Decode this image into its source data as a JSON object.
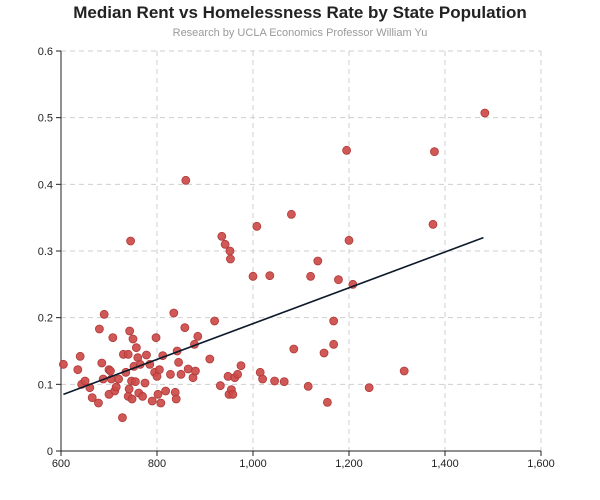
{
  "chart_data": {
    "type": "scatter",
    "title": "Median Rent vs Homelessness Rate by State Population",
    "subtitle": "Research by UCLA Economics Professor William Yu",
    "xlabel": "",
    "ylabel": "",
    "xlim": [
      600,
      1600
    ],
    "ylim": [
      0,
      0.6
    ],
    "x_ticks": [
      "600",
      "800",
      "1,000",
      "1,200",
      "1,400",
      "1,600"
    ],
    "y_ticks": [
      "0",
      "0.1",
      "0.2",
      "0.3",
      "0.4",
      "0.5",
      "0.6"
    ],
    "grid": true,
    "points": [
      [
        605,
        0.13
      ],
      [
        635,
        0.122
      ],
      [
        640,
        0.142
      ],
      [
        643,
        0.1
      ],
      [
        650,
        0.105
      ],
      [
        660,
        0.095
      ],
      [
        665,
        0.08
      ],
      [
        678,
        0.072
      ],
      [
        680,
        0.183
      ],
      [
        685,
        0.132
      ],
      [
        688,
        0.108
      ],
      [
        690,
        0.205
      ],
      [
        700,
        0.085
      ],
      [
        700,
        0.122
      ],
      [
        703,
        0.12
      ],
      [
        705,
        0.108
      ],
      [
        708,
        0.17
      ],
      [
        712,
        0.09
      ],
      [
        715,
        0.096
      ],
      [
        720,
        0.108
      ],
      [
        728,
        0.05
      ],
      [
        730,
        0.145
      ],
      [
        735,
        0.118
      ],
      [
        740,
        0.145
      ],
      [
        740,
        0.082
      ],
      [
        742,
        0.093
      ],
      [
        743,
        0.18
      ],
      [
        745,
        0.315
      ],
      [
        747,
        0.105
      ],
      [
        748,
        0.078
      ],
      [
        750,
        0.168
      ],
      [
        752,
        0.127
      ],
      [
        755,
        0.104
      ],
      [
        757,
        0.155
      ],
      [
        760,
        0.14
      ],
      [
        762,
        0.087
      ],
      [
        765,
        0.13
      ],
      [
        770,
        0.082
      ],
      [
        775,
        0.102
      ],
      [
        778,
        0.144
      ],
      [
        785,
        0.13
      ],
      [
        790,
        0.075
      ],
      [
        795,
        0.118
      ],
      [
        798,
        0.17
      ],
      [
        800,
        0.112
      ],
      [
        802,
        0.085
      ],
      [
        805,
        0.122
      ],
      [
        808,
        0.072
      ],
      [
        812,
        0.143
      ],
      [
        818,
        0.09
      ],
      [
        828,
        0.115
      ],
      [
        835,
        0.207
      ],
      [
        838,
        0.088
      ],
      [
        840,
        0.078
      ],
      [
        842,
        0.15
      ],
      [
        845,
        0.133
      ],
      [
        850,
        0.115
      ],
      [
        858,
        0.185
      ],
      [
        860,
        0.406
      ],
      [
        865,
        0.123
      ],
      [
        875,
        0.11
      ],
      [
        878,
        0.16
      ],
      [
        880,
        0.12
      ],
      [
        885,
        0.172
      ],
      [
        910,
        0.138
      ],
      [
        920,
        0.195
      ],
      [
        932,
        0.098
      ],
      [
        935,
        0.322
      ],
      [
        942,
        0.31
      ],
      [
        948,
        0.112
      ],
      [
        950,
        0.085
      ],
      [
        952,
        0.3
      ],
      [
        953,
        0.288
      ],
      [
        955,
        0.092
      ],
      [
        958,
        0.085
      ],
      [
        962,
        0.11
      ],
      [
        968,
        0.115
      ],
      [
        975,
        0.128
      ],
      [
        1000,
        0.262
      ],
      [
        1008,
        0.337
      ],
      [
        1015,
        0.118
      ],
      [
        1020,
        0.108
      ],
      [
        1035,
        0.263
      ],
      [
        1045,
        0.105
      ],
      [
        1065,
        0.104
      ],
      [
        1080,
        0.355
      ],
      [
        1085,
        0.153
      ],
      [
        1115,
        0.097
      ],
      [
        1120,
        0.262
      ],
      [
        1135,
        0.285
      ],
      [
        1148,
        0.147
      ],
      [
        1155,
        0.073
      ],
      [
        1168,
        0.16
      ],
      [
        1168,
        0.195
      ],
      [
        1178,
        0.257
      ],
      [
        1195,
        0.451
      ],
      [
        1200,
        0.316
      ],
      [
        1208,
        0.25
      ],
      [
        1242,
        0.095
      ],
      [
        1315,
        0.12
      ],
      [
        1375,
        0.34
      ],
      [
        1378,
        0.449
      ],
      [
        1483,
        0.507
      ]
    ],
    "trendline": [
      [
        605,
        0.085
      ],
      [
        1480,
        0.32
      ]
    ]
  }
}
